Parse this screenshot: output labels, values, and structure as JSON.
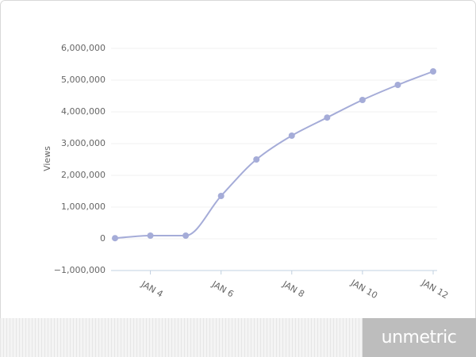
{
  "chart_data": {
    "type": "line",
    "y_label": "Views",
    "categories": [
      null,
      "JAN 4",
      null,
      "JAN 6",
      null,
      "JAN 8",
      null,
      "JAN 10",
      null,
      "JAN 12"
    ],
    "series": [
      {
        "name": "Views",
        "color": "#a5acd8",
        "values": [
          20000,
          100000,
          100000,
          1350000,
          2500000,
          3250000,
          3820000,
          4375000,
          4850000,
          5275000
        ]
      }
    ],
    "ylim": [
      -1000000,
      6000000
    ],
    "yticks": [
      {
        "value": -1000000,
        "label": "−1,000,000"
      },
      0,
      {
        "value": 1000000,
        "label": "1,000,000"
      },
      {
        "value": 2000000,
        "label": "2,000,000"
      },
      {
        "value": 3000000,
        "label": "3,000,000"
      },
      {
        "value": 4000000,
        "label": "4,000,000"
      },
      {
        "value": 5000000,
        "label": "5,000,000"
      },
      {
        "value": 6000000,
        "label": "6,000,000"
      }
    ],
    "grid": true
  },
  "footer": {
    "logo": "unmetric"
  }
}
